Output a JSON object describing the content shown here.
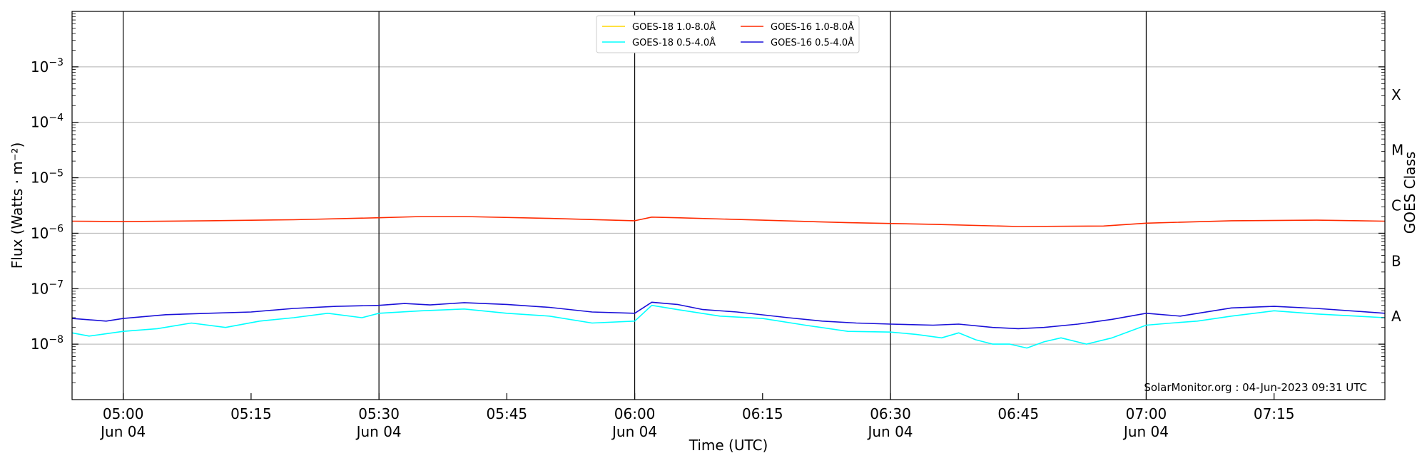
{
  "chart_data": {
    "type": "line",
    "title": "",
    "xlabel": "Time (UTC)",
    "ylabel": "Flux (Watts · m⁻²)",
    "ylabel_right": "GOES Class",
    "yscale": "log",
    "ylim": [
      1e-09,
      0.01
    ],
    "xlim": [
      "2023-06-04 04:54",
      "2023-06-04 07:28"
    ],
    "grid": "horizontal at decades",
    "legend_position": "top-center",
    "credit": "SolarMonitor.org : 04-Jun-2023 09:31 UTC",
    "x_ticks": [
      {
        "time": "2023-06-04 05:00",
        "label": "05:00",
        "sublabel": "Jun 04",
        "major": true
      },
      {
        "time": "2023-06-04 05:15",
        "label": "05:15",
        "sublabel": "",
        "major": false
      },
      {
        "time": "2023-06-04 05:30",
        "label": "05:30",
        "sublabel": "Jun 04",
        "major": true
      },
      {
        "time": "2023-06-04 05:45",
        "label": "05:45",
        "sublabel": "",
        "major": false
      },
      {
        "time": "2023-06-04 06:00",
        "label": "06:00",
        "sublabel": "Jun 04",
        "major": true
      },
      {
        "time": "2023-06-04 06:15",
        "label": "06:15",
        "sublabel": "",
        "major": false
      },
      {
        "time": "2023-06-04 06:30",
        "label": "06:30",
        "sublabel": "Jun 04",
        "major": true
      },
      {
        "time": "2023-06-04 06:45",
        "label": "06:45",
        "sublabel": "",
        "major": false
      },
      {
        "time": "2023-06-04 07:00",
        "label": "07:00",
        "sublabel": "Jun 04",
        "major": true
      },
      {
        "time": "2023-06-04 07:15",
        "label": "07:15",
        "sublabel": "",
        "major": false
      }
    ],
    "y_ticks": [
      {
        "value": 1e-08,
        "base": "10",
        "exp": "−8"
      },
      {
        "value": 1e-07,
        "base": "10",
        "exp": "−7"
      },
      {
        "value": 1e-06,
        "base": "10",
        "exp": "−6"
      },
      {
        "value": 1e-05,
        "base": "10",
        "exp": "−5"
      },
      {
        "value": 0.0001,
        "base": "10",
        "exp": "−4"
      },
      {
        "value": 0.001,
        "base": "10",
        "exp": "−3"
      }
    ],
    "goes_classes": [
      {
        "label": "A",
        "value": 3.16e-08
      },
      {
        "label": "B",
        "value": 3.16e-07
      },
      {
        "label": "C",
        "value": 3.16e-06
      },
      {
        "label": "M",
        "value": 3.16e-05
      },
      {
        "label": "X",
        "value": 0.000316
      }
    ],
    "legend": [
      {
        "label": "GOES-18 1.0-8.0Å",
        "color": "#ffd700"
      },
      {
        "label": "GOES-18 0.5-4.0Å",
        "color": "#00ffff"
      },
      {
        "label": "GOES-16 1.0-8.0Å",
        "color": "#ff2a00"
      },
      {
        "label": "GOES-16 0.5-4.0Å",
        "color": "#1a10d8"
      }
    ],
    "series": [
      {
        "name": "GOES-16 1.0-8.0Å",
        "color": "#ff2a00",
        "x": [
          "04:54",
          "05:00",
          "05:10",
          "05:20",
          "05:30",
          "05:35",
          "05:40",
          "05:50",
          "06:00",
          "06:02",
          "06:05",
          "06:15",
          "06:25",
          "06:35",
          "06:45",
          "06:55",
          "07:00",
          "07:10",
          "07:20",
          "07:28"
        ],
        "values": [
          1.65e-06,
          1.62e-06,
          1.68e-06,
          1.75e-06,
          1.9e-06,
          2e-06,
          2e-06,
          1.85e-06,
          1.68e-06,
          1.95e-06,
          1.9e-06,
          1.72e-06,
          1.55e-06,
          1.45e-06,
          1.32e-06,
          1.35e-06,
          1.52e-06,
          1.68e-06,
          1.72e-06,
          1.65e-06
        ]
      },
      {
        "name": "GOES-16 0.5-4.0Å",
        "color": "#1a10d8",
        "x": [
          "04:54",
          "04:58",
          "05:00",
          "05:05",
          "05:10",
          "05:15",
          "05:20",
          "05:25",
          "05:30",
          "05:33",
          "05:36",
          "05:40",
          "05:45",
          "05:50",
          "05:55",
          "06:00",
          "06:02",
          "06:05",
          "06:08",
          "06:12",
          "06:18",
          "06:22",
          "06:26",
          "06:30",
          "06:35",
          "06:38",
          "06:42",
          "06:45",
          "06:48",
          "06:52",
          "06:56",
          "07:00",
          "07:04",
          "07:10",
          "07:15",
          "07:20",
          "07:28"
        ],
        "values": [
          2.9e-08,
          2.6e-08,
          2.9e-08,
          3.4e-08,
          3.6e-08,
          3.8e-08,
          4.4e-08,
          4.8e-08,
          5e-08,
          5.4e-08,
          5.1e-08,
          5.6e-08,
          5.2e-08,
          4.6e-08,
          3.8e-08,
          3.6e-08,
          5.7e-08,
          5.2e-08,
          4.2e-08,
          3.8e-08,
          3e-08,
          2.6e-08,
          2.4e-08,
          2.3e-08,
          2.2e-08,
          2.3e-08,
          2e-08,
          1.9e-08,
          2e-08,
          2.3e-08,
          2.8e-08,
          3.6e-08,
          3.2e-08,
          4.5e-08,
          4.8e-08,
          4.4e-08,
          3.6e-08
        ]
      },
      {
        "name": "GOES-18 0.5-4.0Å",
        "color": "#00ffff",
        "x": [
          "04:54",
          "04:56",
          "05:00",
          "05:04",
          "05:08",
          "05:12",
          "05:16",
          "05:20",
          "05:24",
          "05:28",
          "05:30",
          "05:35",
          "05:40",
          "05:45",
          "05:50",
          "05:55",
          "06:00",
          "06:02",
          "06:05",
          "06:10",
          "06:15",
          "06:20",
          "06:25",
          "06:30",
          "06:33",
          "06:36",
          "06:38",
          "06:40",
          "06:42",
          "06:44",
          "06:46",
          "06:48",
          "06:50",
          "06:53",
          "06:56",
          "07:00",
          "07:03",
          "07:06",
          "07:10",
          "07:15",
          "07:20",
          "07:28"
        ],
        "values": [
          1.6e-08,
          1.4e-08,
          1.7e-08,
          1.9e-08,
          2.4e-08,
          2e-08,
          2.6e-08,
          3e-08,
          3.6e-08,
          3e-08,
          3.6e-08,
          4e-08,
          4.3e-08,
          3.6e-08,
          3.2e-08,
          2.4e-08,
          2.6e-08,
          5e-08,
          4.2e-08,
          3.2e-08,
          2.9e-08,
          2.2e-08,
          1.7e-08,
          1.65e-08,
          1.5e-08,
          1.3e-08,
          1.6e-08,
          1.2e-08,
          1e-08,
          1e-08,
          8.5e-09,
          1.1e-08,
          1.3e-08,
          1e-08,
          1.3e-08,
          2.2e-08,
          2.4e-08,
          2.6e-08,
          3.2e-08,
          4e-08,
          3.5e-08,
          3e-08
        ]
      }
    ]
  }
}
